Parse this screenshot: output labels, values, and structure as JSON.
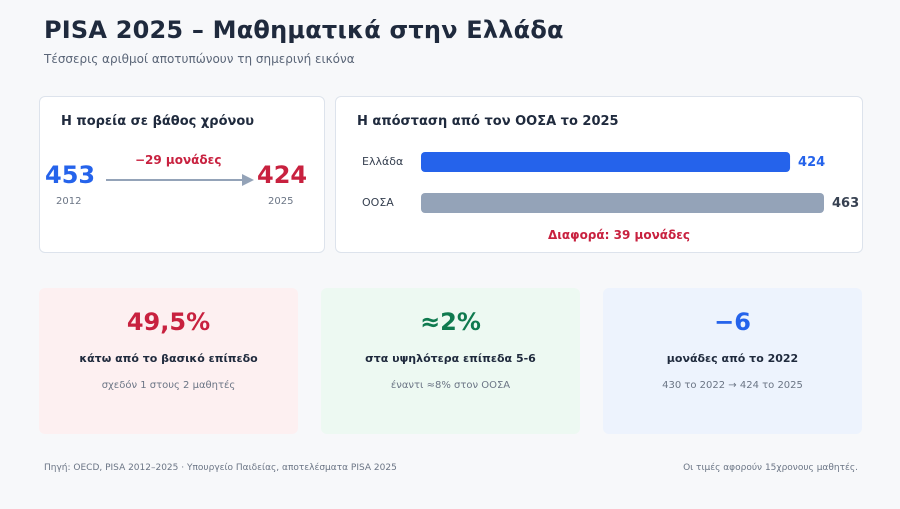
{
  "header": {
    "title": "PISA 2025 – Μαθηματικά στην Ελλάδα",
    "subtitle": "Τέσσερις αριθμοί αποτυπώνουν τη σημερινή εικόνα"
  },
  "trend": {
    "title": "Η πορεία σε βάθος χρόνου",
    "start_value": "453",
    "start_year": "2012",
    "end_value": "424",
    "end_year": "2025",
    "delta_label": "−29 μονάδες"
  },
  "chart_data": {
    "type": "bar",
    "title": "Η απόσταση από τον ΟΟΣΑ το 2025",
    "categories": [
      "Ελλάδα",
      "ΟΟΣΑ"
    ],
    "values": [
      424,
      463
    ],
    "value_labels": [
      "424",
      "463"
    ],
    "colors": [
      "#2563eb",
      "#94a3b8"
    ],
    "value_colors": [
      "#2563eb",
      "#374151"
    ],
    "xlim": [
      0,
      463
    ],
    "orientation": "horizontal",
    "annotation": "Διαφορά: 39 μονάδες"
  },
  "kpis": [
    {
      "value": "49,5%",
      "label": "κάτω από το βασικό επίπεδο",
      "note": "σχεδόν 1 στους 2 μαθητές",
      "color": "#c8213f"
    },
    {
      "value": "≈2%",
      "label": "στα υψηλότερα επίπεδα 5-6",
      "note": "έναντι ≈8% στον ΟΟΣΑ",
      "color": "#0f7a4f"
    },
    {
      "value": "−6",
      "label": "μονάδες από το 2022",
      "note": "430 το 2022 → 424 το 2025",
      "color": "#2563eb"
    }
  ],
  "colors": {
    "blue": "#2563eb",
    "red": "#c8213f",
    "arrow": "#94a3b8"
  },
  "footer": {
    "source": "Πηγή: OECD, PISA 2012–2025 · Υπουργείο Παιδείας, αποτελέσματα PISA 2025",
    "note": "Οι τιμές αφορούν 15χρονους μαθητές."
  }
}
